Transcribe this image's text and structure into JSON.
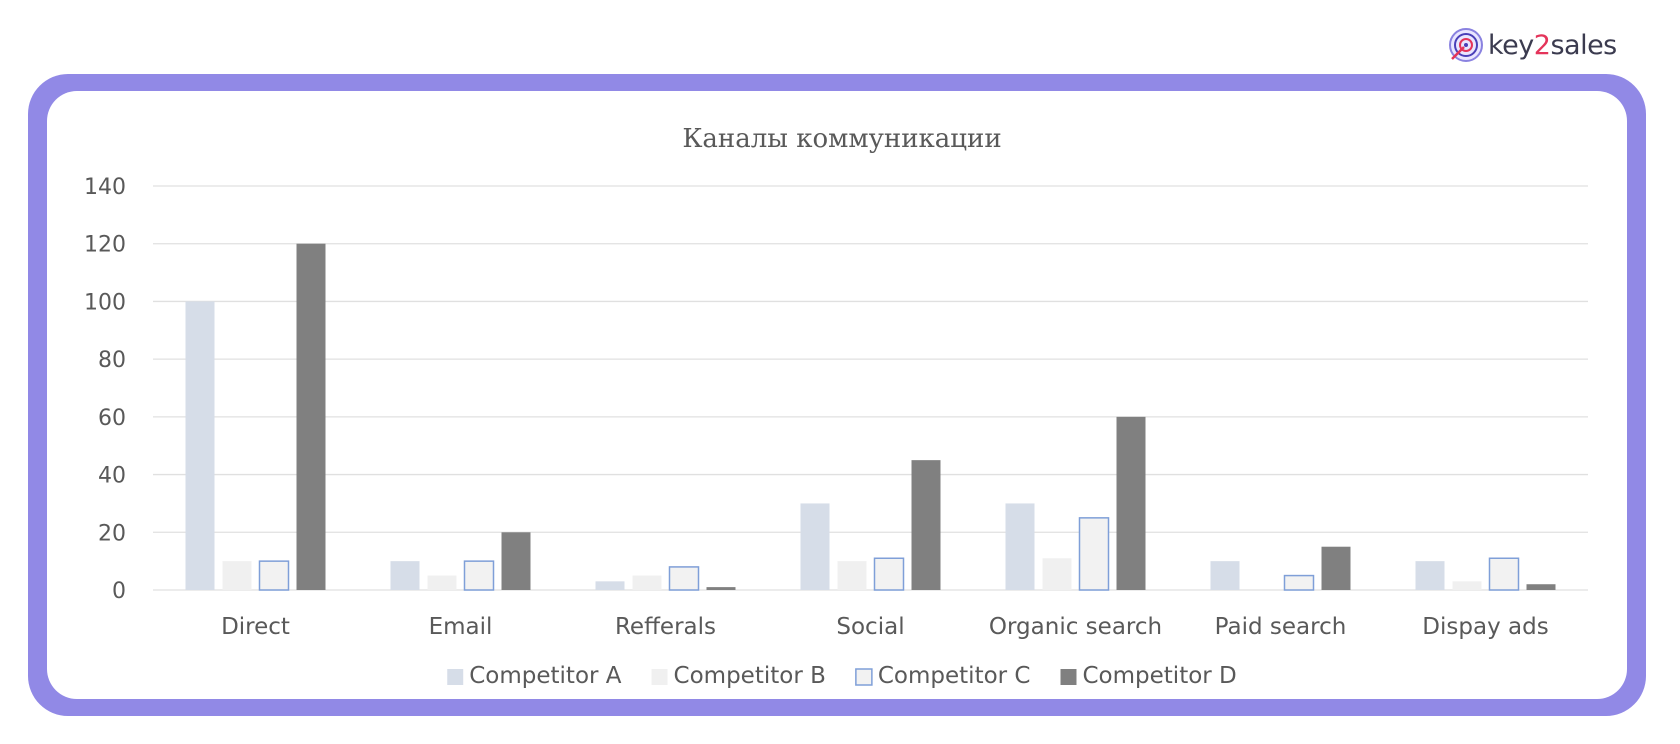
{
  "brand": {
    "name_prefix": "key",
    "name_accent": "2",
    "name_suffix": "sales",
    "logo_icon": "target-icon",
    "accent_color": "#e4345a",
    "frame_color": "#9189e6"
  },
  "chart_data": {
    "type": "bar",
    "title": "Каналы коммуникации",
    "xlabel": "",
    "ylabel": "",
    "ylim": [
      0,
      140
    ],
    "yticks": [
      0,
      20,
      40,
      60,
      80,
      100,
      120,
      140
    ],
    "grid": true,
    "legend_position": "bottom",
    "categories": [
      "Direct",
      "Email",
      "Refferals",
      "Social",
      "Organic search",
      "Paid search",
      "Dispay ads"
    ],
    "series": [
      {
        "name": "Competitor A",
        "values": [
          100,
          10,
          3,
          30,
          30,
          10,
          10
        ],
        "fill": "#d6dde8",
        "stroke": "none"
      },
      {
        "name": "Competitor B",
        "values": [
          10,
          5,
          5,
          10,
          11,
          0,
          3
        ],
        "fill": "#f0f0f0",
        "stroke": "none"
      },
      {
        "name": "Competitor C",
        "values": [
          10,
          10,
          8,
          11,
          25,
          5,
          11
        ],
        "fill": "#f2f2f2",
        "stroke": "#7f9fd8"
      },
      {
        "name": "Competitor D",
        "values": [
          120,
          20,
          1,
          45,
          60,
          15,
          2
        ],
        "fill": "#808080",
        "stroke": "none"
      }
    ]
  }
}
